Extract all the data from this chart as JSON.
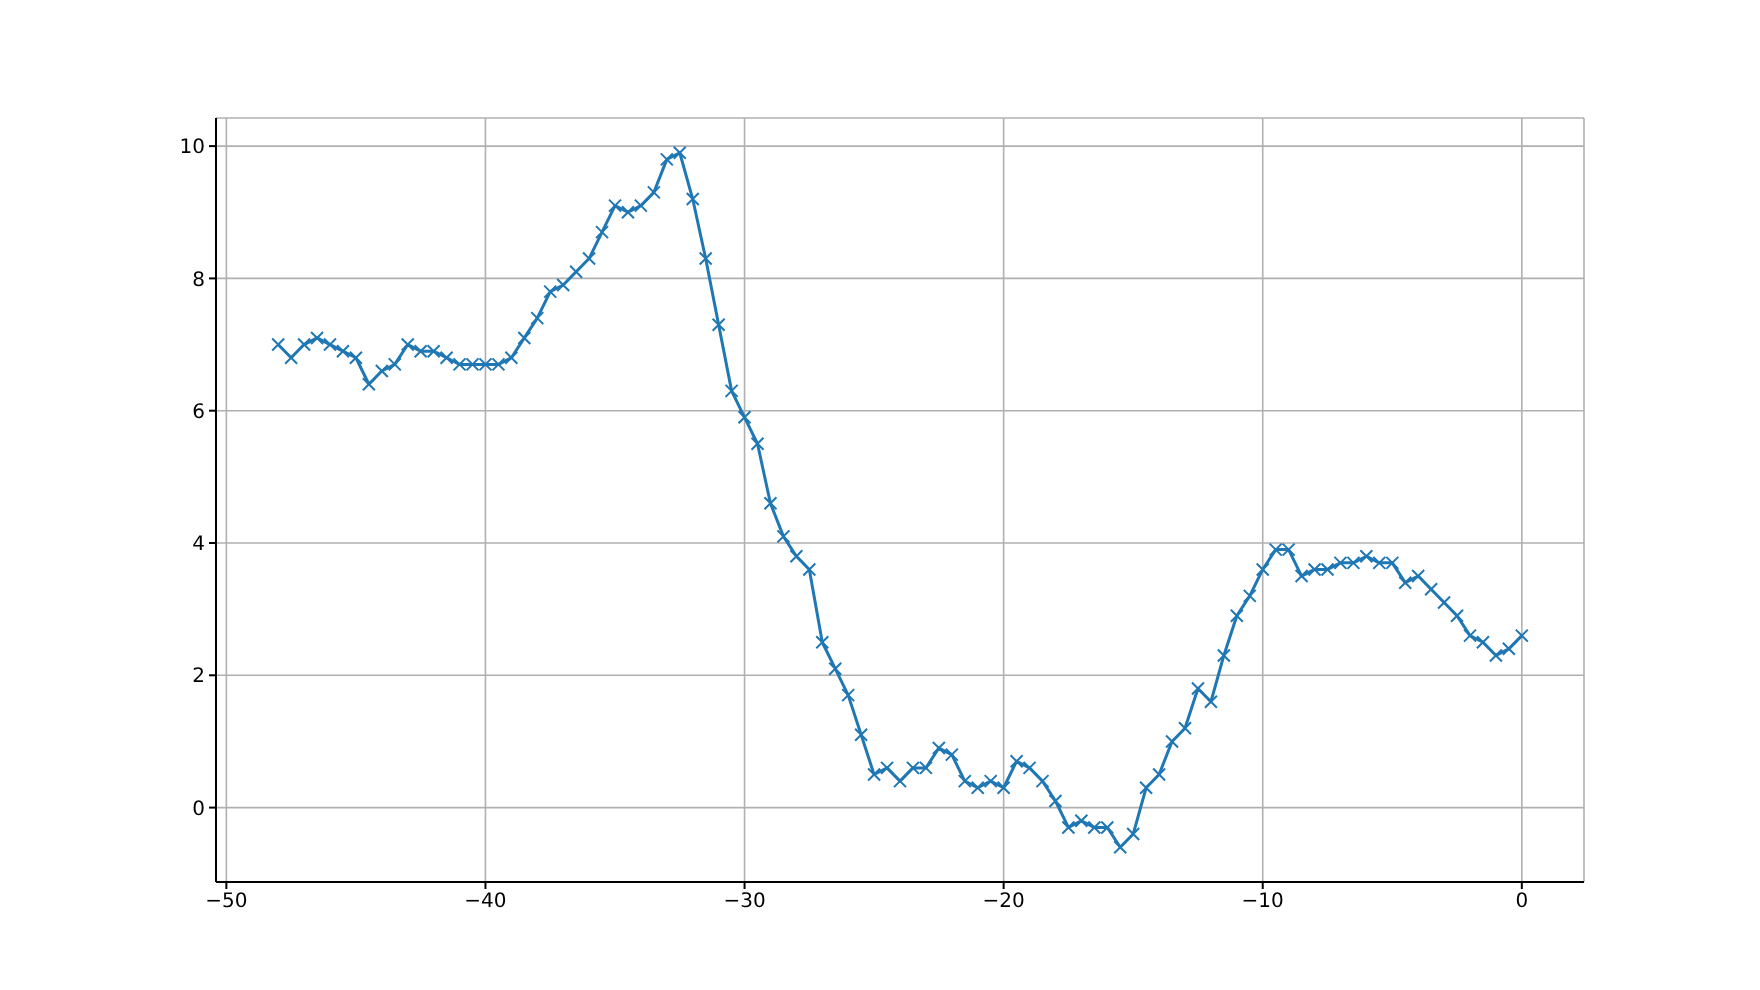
{
  "chart_data": {
    "type": "line",
    "x": [
      -48,
      -47.5,
      -47,
      -46.5,
      -46,
      -45.5,
      -45,
      -44.5,
      -44,
      -43.5,
      -43,
      -42.5,
      -42,
      -41.5,
      -41,
      -40.5,
      -40,
      -39.5,
      -39,
      -38.5,
      -38,
      -37.5,
      -37,
      -36.5,
      -36,
      -35.5,
      -35,
      -34.5,
      -34,
      -33.5,
      -33,
      -32.5,
      -32,
      -31.5,
      -31,
      -30.5,
      -30,
      -29.5,
      -29,
      -28.5,
      -28,
      -27.5,
      -27,
      -26.5,
      -26,
      -25.5,
      -25,
      -24.5,
      -24,
      -23.5,
      -23,
      -22.5,
      -22,
      -21.5,
      -21,
      -20.5,
      -20,
      -19.5,
      -19,
      -18.5,
      -18,
      -17.5,
      -17,
      -16.5,
      -16,
      -15.5,
      -15,
      -14.5,
      -14,
      -13.5,
      -13,
      -12.5,
      -12,
      -11.5,
      -11,
      -10.5,
      -10,
      -9.5,
      -9,
      -8.5,
      -8,
      -7.5,
      -7,
      -6.5,
      -6,
      -5.5,
      -5,
      -4.5,
      -4,
      -3.5,
      -3,
      -2.5,
      -2,
      -1.5,
      -1,
      -0.5,
      0
    ],
    "series": [
      {
        "color": "#1f77b4",
        "values": [
          7.0,
          6.8,
          7.0,
          7.1,
          7.0,
          6.9,
          6.8,
          6.4,
          6.6,
          6.7,
          7.0,
          6.9,
          6.9,
          6.8,
          6.7,
          6.7,
          6.7,
          6.7,
          6.8,
          7.1,
          7.4,
          7.8,
          7.9,
          8.1,
          8.3,
          8.7,
          9.1,
          9.0,
          9.1,
          9.3,
          9.8,
          9.9,
          9.2,
          8.3,
          7.3,
          6.3,
          5.9,
          5.5,
          4.6,
          4.1,
          3.8,
          3.6,
          2.5,
          2.1,
          1.7,
          1.1,
          0.5,
          0.6,
          0.4,
          0.6,
          0.6,
          0.9,
          0.8,
          0.4,
          0.3,
          0.4,
          0.3,
          0.7,
          0.6,
          0.4,
          0.1,
          -0.3,
          -0.2,
          -0.3,
          -0.3,
          -0.6,
          -0.4,
          0.3,
          0.5,
          1.0,
          1.2,
          1.8,
          1.6,
          2.3,
          2.9,
          3.2,
          3.6,
          3.9,
          3.9,
          3.5,
          3.6,
          3.6,
          3.7,
          3.7,
          3.8,
          3.7,
          3.7,
          3.4,
          3.5,
          3.3,
          3.1,
          2.9,
          2.6,
          2.5,
          2.3,
          2.4,
          2.6
        ]
      }
    ],
    "xlim": [
      -50.4,
      2.4
    ],
    "xticks": [
      -50,
      -40,
      -30,
      -20,
      -10,
      0
    ],
    "ylim": [
      -1.125,
      10.425
    ],
    "yticks": [
      0,
      2,
      4,
      6,
      8,
      10
    ],
    "grid": true,
    "marker": "cross",
    "line_style": "solid"
  }
}
